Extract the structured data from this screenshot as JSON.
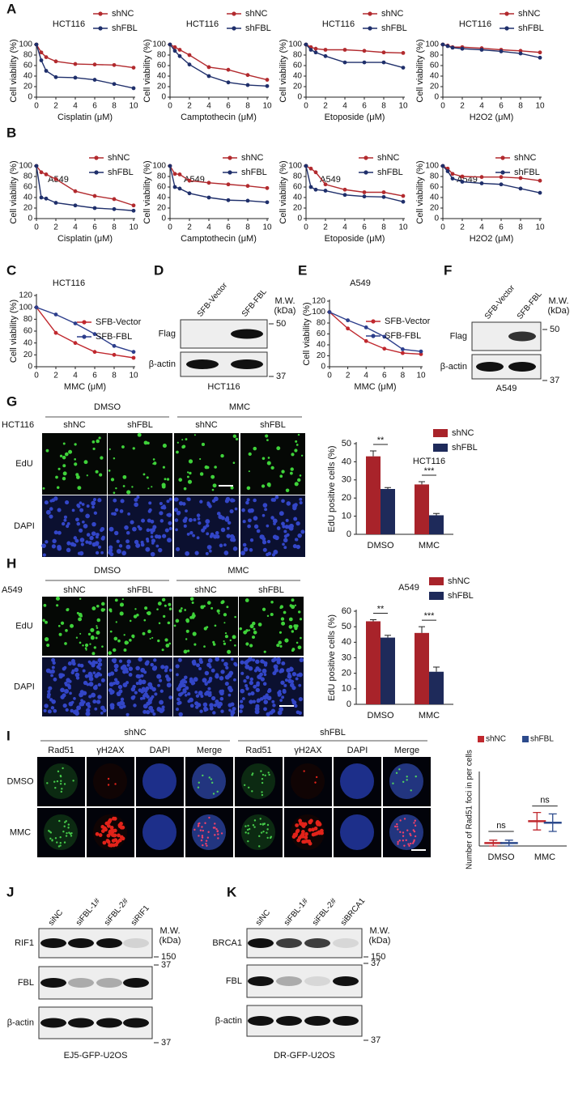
{
  "panel_letters": [
    "A",
    "B",
    "C",
    "D",
    "E",
    "F",
    "G",
    "H",
    "I",
    "J",
    "K"
  ],
  "chart_data": [
    {
      "type": "line",
      "title": "HCT116",
      "x": [
        0,
        0.5,
        1,
        2,
        4,
        6,
        8,
        10
      ],
      "xlabel": "Cisplatin (μM)",
      "ylabel": "Cell viability (%)",
      "xlim": [
        0,
        10
      ],
      "xticks": [
        0,
        2,
        4,
        6,
        8,
        10
      ],
      "ylim": [
        0,
        100
      ],
      "yticks": [
        0,
        20,
        40,
        60,
        80,
        100
      ],
      "series": [
        {
          "name": "shNC",
          "color": "#b22a2e",
          "values": [
            100,
            85,
            76,
            68,
            63,
            62,
            61,
            56
          ]
        },
        {
          "name": "shFBL",
          "color": "#1f2f6b",
          "values": [
            100,
            70,
            50,
            38,
            37,
            33,
            25,
            17
          ]
        }
      ]
    },
    {
      "type": "line",
      "title": "HCT116",
      "x": [
        0,
        0.5,
        1,
        2,
        4,
        6,
        8,
        10
      ],
      "xlabel": "Camptothecin (μM)",
      "ylabel": "Cell viability (%)",
      "xlim": [
        0,
        10
      ],
      "xticks": [
        0,
        2,
        4,
        6,
        8,
        10
      ],
      "ylim": [
        0,
        100
      ],
      "yticks": [
        0,
        20,
        40,
        60,
        80,
        100
      ],
      "series": [
        {
          "name": "shNC",
          "color": "#b22a2e",
          "values": [
            100,
            95,
            90,
            80,
            57,
            52,
            42,
            33
          ]
        },
        {
          "name": "shFBL",
          "color": "#1f2f6b",
          "values": [
            100,
            88,
            78,
            62,
            40,
            28,
            23,
            21
          ]
        }
      ]
    },
    {
      "type": "line",
      "title": "HCT116",
      "x": [
        0,
        0.5,
        1,
        2,
        4,
        6,
        8,
        10
      ],
      "xlabel": "Etoposide (μM)",
      "ylabel": "Cell viability (%)",
      "xlim": [
        0,
        10
      ],
      "xticks": [
        0,
        2,
        4,
        6,
        8,
        10
      ],
      "ylim": [
        0,
        100
      ],
      "yticks": [
        0,
        20,
        40,
        60,
        80,
        100
      ],
      "series": [
        {
          "name": "shNC",
          "color": "#b22a2e",
          "values": [
            100,
            95,
            92,
            90,
            90,
            88,
            85,
            84
          ]
        },
        {
          "name": "shFBL",
          "color": "#1f2f6b",
          "values": [
            100,
            90,
            85,
            78,
            66,
            66,
            66,
            56
          ]
        }
      ]
    },
    {
      "type": "line",
      "title": "HCT116",
      "x": [
        0,
        0.5,
        1,
        2,
        4,
        6,
        8,
        10
      ],
      "xlabel": "H2O2 (μM)",
      "ylabel": "Cell viability (%)",
      "xlim": [
        0,
        10
      ],
      "xticks": [
        0,
        2,
        4,
        6,
        8,
        10
      ],
      "ylim": [
        0,
        100
      ],
      "yticks": [
        0,
        20,
        40,
        60,
        80,
        100
      ],
      "series": [
        {
          "name": "shNC",
          "color": "#b22a2e",
          "values": [
            100,
            98,
            95,
            95,
            93,
            90,
            88,
            85
          ]
        },
        {
          "name": "shFBL",
          "color": "#1f2f6b",
          "values": [
            100,
            97,
            94,
            92,
            90,
            87,
            83,
            75
          ]
        }
      ]
    },
    {
      "type": "line",
      "title": "A549",
      "x": [
        0,
        0.5,
        1,
        2,
        4,
        6,
        8,
        10
      ],
      "xlabel": "Cisplatin (μM)",
      "ylabel": "Cell viability (%)",
      "xlim": [
        0,
        10
      ],
      "xticks": [
        0,
        2,
        4,
        6,
        8,
        10
      ],
      "ylim": [
        0,
        100
      ],
      "yticks": [
        0,
        20,
        40,
        60,
        80,
        100
      ],
      "series": [
        {
          "name": "shNC",
          "color": "#b22a2e",
          "values": [
            100,
            88,
            84,
            75,
            52,
            43,
            37,
            25
          ]
        },
        {
          "name": "shFBL",
          "color": "#1f2f6b",
          "values": [
            100,
            40,
            38,
            30,
            25,
            20,
            18,
            15
          ]
        }
      ]
    },
    {
      "type": "line",
      "title": "A549",
      "x": [
        0,
        0.5,
        1,
        2,
        4,
        6,
        8,
        10
      ],
      "xlabel": "Camptothecin (μM)",
      "ylabel": "Cell viability (%)",
      "xlim": [
        0,
        10
      ],
      "xticks": [
        0,
        2,
        4,
        6,
        8,
        10
      ],
      "ylim": [
        0,
        100
      ],
      "yticks": [
        0,
        20,
        40,
        60,
        80,
        100
      ],
      "series": [
        {
          "name": "shNC",
          "color": "#b22a2e",
          "values": [
            100,
            85,
            84,
            72,
            68,
            65,
            62,
            58
          ]
        },
        {
          "name": "shFBL",
          "color": "#1f2f6b",
          "values": [
            100,
            60,
            57,
            48,
            40,
            35,
            34,
            31
          ]
        }
      ]
    },
    {
      "type": "line",
      "title": "A549",
      "x": [
        0,
        0.5,
        1,
        2,
        4,
        6,
        8,
        10
      ],
      "xlabel": "Etoposide (μM)",
      "ylabel": "Cell viability (%)",
      "xlim": [
        0,
        10
      ],
      "xticks": [
        0,
        2,
        4,
        6,
        8,
        10
      ],
      "ylim": [
        0,
        100
      ],
      "yticks": [
        0,
        20,
        40,
        60,
        80,
        100
      ],
      "series": [
        {
          "name": "shNC",
          "color": "#b22a2e",
          "values": [
            100,
            95,
            88,
            65,
            55,
            50,
            50,
            43
          ]
        },
        {
          "name": "shFBL",
          "color": "#1f2f6b",
          "values": [
            100,
            60,
            55,
            53,
            45,
            42,
            41,
            32
          ]
        }
      ]
    },
    {
      "type": "line",
      "title": "A549",
      "x": [
        0,
        0.5,
        1,
        2,
        4,
        6,
        8,
        10
      ],
      "xlabel": "H2O2 (μM)",
      "ylabel": "Cell viability (%)",
      "xlim": [
        0,
        10
      ],
      "xticks": [
        0,
        2,
        4,
        6,
        8,
        10
      ],
      "ylim": [
        0,
        100
      ],
      "yticks": [
        0,
        20,
        40,
        60,
        80,
        100
      ],
      "series": [
        {
          "name": "shNC",
          "color": "#b22a2e",
          "values": [
            100,
            95,
            85,
            80,
            79,
            79,
            77,
            72
          ]
        },
        {
          "name": "shFBL",
          "color": "#1f2f6b",
          "values": [
            100,
            90,
            76,
            70,
            67,
            65,
            57,
            49
          ]
        }
      ]
    },
    {
      "type": "line",
      "title": "HCT116",
      "x": [
        0,
        2,
        4,
        6,
        8,
        10
      ],
      "xlabel": "MMC (μM)",
      "ylabel": "Cell viability (%)",
      "xlim": [
        0,
        10
      ],
      "xticks": [
        0,
        2,
        4,
        6,
        8,
        10
      ],
      "ylim": [
        0,
        120
      ],
      "yticks": [
        0,
        20,
        40,
        60,
        80,
        100,
        120
      ],
      "series": [
        {
          "name": "SFB-Vector",
          "color": "#c0282e",
          "values": [
            100,
            57,
            40,
            25,
            20,
            15
          ]
        },
        {
          "name": "SFB-FBL",
          "color": "#2c3e8c",
          "values": [
            100,
            88,
            73,
            55,
            35,
            25
          ]
        }
      ]
    },
    {
      "type": "line",
      "title": "A549",
      "x": [
        0,
        2,
        4,
        6,
        8,
        10
      ],
      "xlabel": "MMC (μM)",
      "ylabel": "Cell viability (%)",
      "xlim": [
        0,
        10
      ],
      "xticks": [
        0,
        2,
        4,
        6,
        8,
        10
      ],
      "ylim": [
        0,
        120
      ],
      "yticks": [
        0,
        20,
        40,
        60,
        80,
        100,
        120
      ],
      "series": [
        {
          "name": "SFB-Vector",
          "color": "#c0282e",
          "values": [
            100,
            70,
            47,
            33,
            25,
            23
          ]
        },
        {
          "name": "SFB-FBL",
          "color": "#2c3e8c",
          "values": [
            100,
            85,
            72,
            55,
            32,
            28
          ]
        }
      ]
    },
    {
      "type": "bar",
      "title": "HCT116",
      "ylabel": "EdU positive cells (%)",
      "categories": [
        "DMSO",
        "MMC"
      ],
      "ylim": [
        0,
        50
      ],
      "yticks": [
        0,
        10,
        20,
        30,
        40,
        50
      ],
      "annotations": [
        "**",
        "***"
      ],
      "series": [
        {
          "name": "shNC",
          "color": "#a8232a",
          "values": [
            43,
            27.5
          ],
          "errors": [
            3,
            1.5
          ]
        },
        {
          "name": "shFBL",
          "color": "#1e2a5a",
          "values": [
            25,
            10.5
          ],
          "errors": [
            0.8,
            1
          ]
        }
      ]
    },
    {
      "type": "bar",
      "title": "A549",
      "ylabel": "EdU positive cells (%)",
      "categories": [
        "DMSO",
        "MMC"
      ],
      "ylim": [
        0,
        60
      ],
      "yticks": [
        0,
        10,
        20,
        30,
        40,
        50,
        60
      ],
      "annotations": [
        "**",
        "***"
      ],
      "series": [
        {
          "name": "shNC",
          "color": "#a8232a",
          "values": [
            53.5,
            46
          ],
          "errors": [
            1,
            4
          ]
        },
        {
          "name": "shFBL",
          "color": "#1e2a5a",
          "values": [
            43,
            21
          ],
          "errors": [
            1.5,
            3
          ]
        }
      ]
    },
    {
      "type": "dot",
      "ylabel": "Number of Rad51 foci in per cells",
      "categories": [
        "DMSO",
        "MMC"
      ],
      "ylim": [
        0,
        50
      ],
      "annotations": [
        "ns",
        "ns"
      ],
      "series": [
        {
          "name": "shNC",
          "color": "#c0282e",
          "values": [
            2,
            17
          ],
          "errors": [
            2,
            6
          ]
        },
        {
          "name": "shFBL",
          "color": "#2c4a8c",
          "values": [
            2,
            16
          ],
          "errors": [
            2,
            6
          ]
        }
      ]
    }
  ],
  "micrographs": [
    {
      "cell_line": "HCT116",
      "groups": [
        "DMSO",
        "MMC"
      ],
      "columns": [
        "shNC",
        "shFBL",
        "shNC",
        "shFBL"
      ],
      "rows": [
        "EdU",
        "DAPI"
      ]
    },
    {
      "cell_line": "A549",
      "groups": [
        "DMSO",
        "MMC"
      ],
      "columns": [
        "shNC",
        "shFBL",
        "shNC",
        "shFBL"
      ],
      "rows": [
        "EdU",
        "DAPI"
      ]
    },
    {
      "groups": [
        "shNC",
        "shFBL"
      ],
      "columns": [
        "Rad51",
        "γH2AX",
        "DAPI",
        "Merge",
        "Rad51",
        "γH2AX",
        "DAPI",
        "Merge"
      ],
      "rows": [
        "DMSO",
        "MMC"
      ]
    }
  ],
  "blots": [
    {
      "lanes": [
        "SFB-Vector",
        "SFB-FBL"
      ],
      "rows": [
        "Flag",
        "β-actin"
      ],
      "mw": [
        "M.W.",
        "(kDa)"
      ],
      "markers": [
        50,
        37
      ],
      "caption": "HCT116"
    },
    {
      "lanes": [
        "SFB-Vector",
        "SFB-FBL"
      ],
      "rows": [
        "Flag",
        "β-actin"
      ],
      "mw": [
        "M.W.",
        "(kDa)"
      ],
      "markers": [
        50,
        37
      ],
      "caption": "A549"
    },
    {
      "lanes": [
        "siNC",
        "siFBL-1#",
        "siFBL-2#",
        "siRIF1"
      ],
      "rows": [
        "RIF1",
        "FBL",
        "β-actin"
      ],
      "mw": [
        "M.W.",
        "(kDa)"
      ],
      "markers": [
        150,
        37,
        37
      ],
      "caption": "EJ5-GFP-U2OS"
    },
    {
      "lanes": [
        "siNC",
        "siFBL-1#",
        "siFBL-2#",
        "siBRCA1"
      ],
      "rows": [
        "BRCA1",
        "FBL",
        "β-actin"
      ],
      "mw": [
        "M.W.",
        "(kDa)"
      ],
      "markers": [
        150,
        37,
        37
      ],
      "caption": "DR-GFP-U2OS"
    }
  ]
}
